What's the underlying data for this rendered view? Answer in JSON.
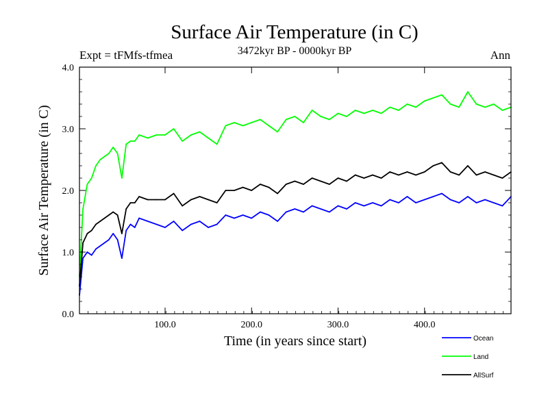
{
  "chart_data": {
    "type": "line",
    "title": "Surface Air Temperature (in C)",
    "subtitle": "3472kyr BP - 0000kyr BP",
    "left_annotation": "Expt = tFMfs-tfmea",
    "right_annotation": "Ann",
    "xlabel": "Time (in years since start)",
    "ylabel": "Surface Air Temperature (in C)",
    "xlim": [
      1,
      500
    ],
    "ylim": [
      0.0,
      4.0
    ],
    "x_ticks": [
      100,
      200,
      300,
      400
    ],
    "x_tick_labels": [
      "100.0",
      "200.0",
      "300.0",
      "400.0"
    ],
    "y_ticks": [
      0,
      1,
      2,
      3,
      4
    ],
    "y_tick_labels": [
      "0.0",
      "1.0",
      "2.0",
      "3.0",
      "4.0"
    ],
    "legend_position": "bottom-right",
    "x": [
      1,
      5,
      10,
      15,
      20,
      25,
      30,
      35,
      40,
      45,
      50,
      55,
      60,
      65,
      70,
      80,
      90,
      100,
      110,
      120,
      130,
      140,
      150,
      160,
      170,
      180,
      190,
      200,
      210,
      220,
      230,
      240,
      250,
      260,
      270,
      280,
      290,
      300,
      310,
      320,
      330,
      340,
      350,
      360,
      370,
      380,
      390,
      400,
      410,
      420,
      430,
      440,
      450,
      460,
      470,
      480,
      490,
      500
    ],
    "series": [
      {
        "name": "Ocean",
        "color": "#0000ff",
        "values": [
          0.3,
          0.9,
          1.0,
          0.95,
          1.05,
          1.1,
          1.15,
          1.2,
          1.3,
          1.2,
          0.9,
          1.35,
          1.45,
          1.4,
          1.55,
          1.5,
          1.45,
          1.4,
          1.5,
          1.35,
          1.45,
          1.5,
          1.4,
          1.45,
          1.6,
          1.55,
          1.6,
          1.55,
          1.65,
          1.6,
          1.5,
          1.65,
          1.7,
          1.65,
          1.75,
          1.7,
          1.65,
          1.75,
          1.7,
          1.8,
          1.75,
          1.8,
          1.75,
          1.85,
          1.8,
          1.9,
          1.8,
          1.85,
          1.9,
          1.95,
          1.85,
          1.8,
          1.9,
          1.8,
          1.85,
          1.8,
          1.75,
          1.9
        ]
      },
      {
        "name": "Land",
        "color": "#00ff00",
        "values": [
          0.6,
          1.7,
          2.1,
          2.2,
          2.4,
          2.5,
          2.55,
          2.6,
          2.7,
          2.6,
          2.2,
          2.75,
          2.8,
          2.8,
          2.9,
          2.85,
          2.9,
          2.9,
          3.0,
          2.8,
          2.9,
          2.95,
          2.85,
          2.75,
          3.05,
          3.1,
          3.05,
          3.1,
          3.15,
          3.05,
          2.95,
          3.15,
          3.2,
          3.1,
          3.3,
          3.2,
          3.15,
          3.25,
          3.2,
          3.3,
          3.25,
          3.3,
          3.25,
          3.35,
          3.3,
          3.4,
          3.35,
          3.45,
          3.5,
          3.55,
          3.4,
          3.35,
          3.6,
          3.4,
          3.35,
          3.4,
          3.3,
          3.35
        ]
      },
      {
        "name": "AllSurf",
        "color": "#000000",
        "values": [
          0.45,
          1.15,
          1.3,
          1.35,
          1.45,
          1.5,
          1.55,
          1.6,
          1.65,
          1.6,
          1.3,
          1.7,
          1.8,
          1.8,
          1.9,
          1.85,
          1.85,
          1.85,
          1.95,
          1.75,
          1.85,
          1.9,
          1.85,
          1.8,
          2.0,
          2.0,
          2.05,
          2.0,
          2.1,
          2.05,
          1.95,
          2.1,
          2.15,
          2.1,
          2.2,
          2.15,
          2.1,
          2.2,
          2.15,
          2.25,
          2.2,
          2.25,
          2.2,
          2.3,
          2.25,
          2.3,
          2.25,
          2.3,
          2.4,
          2.45,
          2.3,
          2.25,
          2.4,
          2.25,
          2.3,
          2.25,
          2.2,
          2.3
        ]
      }
    ]
  }
}
